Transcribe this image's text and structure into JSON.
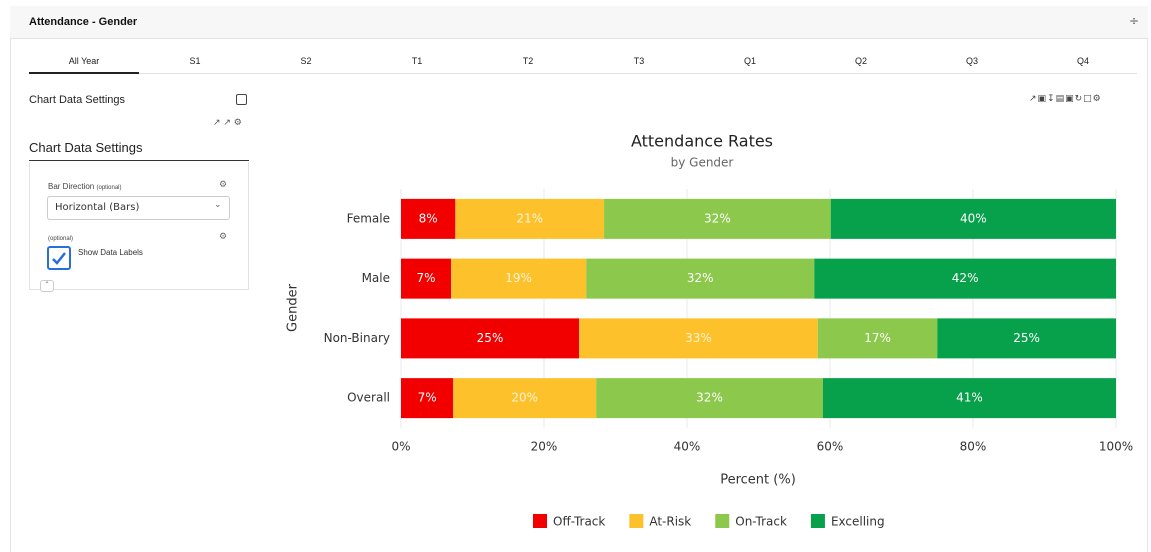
{
  "header": {
    "title": "Attendance - Gender"
  },
  "tabs": [
    "All Year",
    "S1",
    "S2",
    "T1",
    "T2",
    "T3",
    "Q1",
    "Q2",
    "Q3",
    "Q4"
  ],
  "settings": {
    "title": "Chart Data Settings",
    "panel_title": "Chart Data Settings",
    "bar_direction_label": "Bar Direction",
    "bar_direction_hint": "(optional)",
    "bar_direction_value": "Horizontal (Bars)",
    "data_labels_hint": "(optional)",
    "data_labels_label": "Show Data Labels"
  },
  "chart_data": {
    "type": "stacked-barh",
    "title": "Attendance Rates",
    "subtitle": "by Gender",
    "xlabel": "Percent (%)",
    "ylabel": "Gender",
    "categories": [
      "Female",
      "Male",
      "Non-Binary",
      "Overall"
    ],
    "series": [
      {
        "name": "Off-Track",
        "color": "#f20000",
        "values": [
          7.6,
          7.0,
          24.9,
          7.3
        ],
        "value_labels": [
          "8%",
          "7%",
          "25%",
          "7%"
        ]
      },
      {
        "name": "At-Risk",
        "color": "#fdc12b",
        "values": [
          20.8,
          18.9,
          33.4,
          20.0
        ],
        "value_labels": [
          "21%",
          "19%",
          "33%",
          "20%"
        ]
      },
      {
        "name": "On-Track",
        "color": "#8cc84b",
        "values": [
          31.7,
          31.9,
          16.7,
          31.7
        ],
        "value_labels": [
          "32%",
          "32%",
          "17%",
          "32%"
        ]
      },
      {
        "name": "Excelling",
        "color": "#08a14b",
        "values": [
          39.9,
          42.2,
          25.0,
          41.0
        ],
        "value_labels": [
          "40%",
          "42%",
          "25%",
          "41%"
        ]
      }
    ],
    "xlim": [
      0,
      100
    ],
    "xticks": [
      {
        "value": 0,
        "label": "0%"
      },
      {
        "value": 20,
        "label": "20%"
      },
      {
        "value": 40,
        "label": "40%"
      },
      {
        "value": 60,
        "label": "60%"
      },
      {
        "value": 80,
        "label": "80%"
      },
      {
        "value": 100,
        "label": "100%"
      }
    ],
    "grid": true,
    "legend": "bottom"
  }
}
